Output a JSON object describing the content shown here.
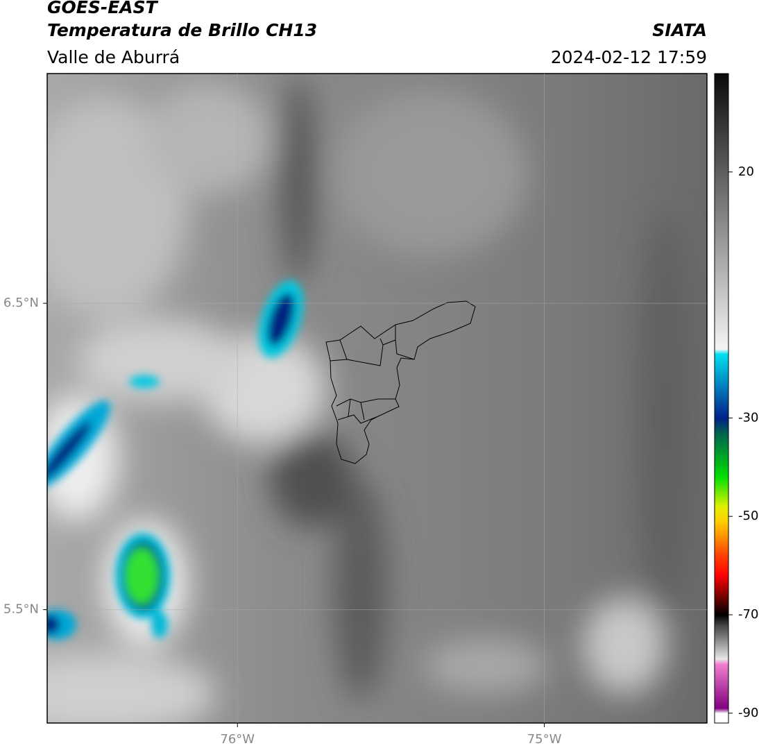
{
  "header": {
    "title": "GOES-EAST",
    "subtitle": "Temperatura de Brillo CH13",
    "region": "Valle de Aburrá",
    "source": "SIATA",
    "datetime": "2024-02-12 17:59"
  },
  "map": {
    "lonlim": [
      -76.62,
      -74.47
    ],
    "latlim": [
      5.13,
      7.25
    ],
    "lonticks": [
      {
        "value": -76,
        "label": "76°W"
      },
      {
        "value": -75,
        "label": "75°W"
      }
    ],
    "latticks": [
      {
        "value": 6.5,
        "label": "6.5°N"
      },
      {
        "value": 5.5,
        "label": "5.5°N"
      }
    ],
    "grid": true
  },
  "colorbar": {
    "lim": [
      -92,
      40
    ],
    "ticks": [
      20,
      -30,
      -50,
      -70,
      -90
    ],
    "stops": [
      {
        "value": 40,
        "color": "#0a0a0a"
      },
      {
        "value": -16,
        "color": "#f5f5f5"
      },
      {
        "value": -17,
        "color": "#00e0f0"
      },
      {
        "value": -30,
        "color": "#00208a"
      },
      {
        "value": -33,
        "color": "#006050"
      },
      {
        "value": -42,
        "color": "#00e000"
      },
      {
        "value": -48,
        "color": "#e0f000"
      },
      {
        "value": -51,
        "color": "#ffd000"
      },
      {
        "value": -58,
        "color": "#ff4000"
      },
      {
        "value": -62,
        "color": "#ff0000"
      },
      {
        "value": -70,
        "color": "#000000"
      },
      {
        "value": -72,
        "color": "#404040"
      },
      {
        "value": -79,
        "color": "#e8e8e8"
      },
      {
        "value": -80,
        "color": "#f080d0"
      },
      {
        "value": -89,
        "color": "#800080"
      },
      {
        "value": -90,
        "color": "#ffffff"
      },
      {
        "value": -92,
        "color": "#ffffff"
      }
    ]
  }
}
